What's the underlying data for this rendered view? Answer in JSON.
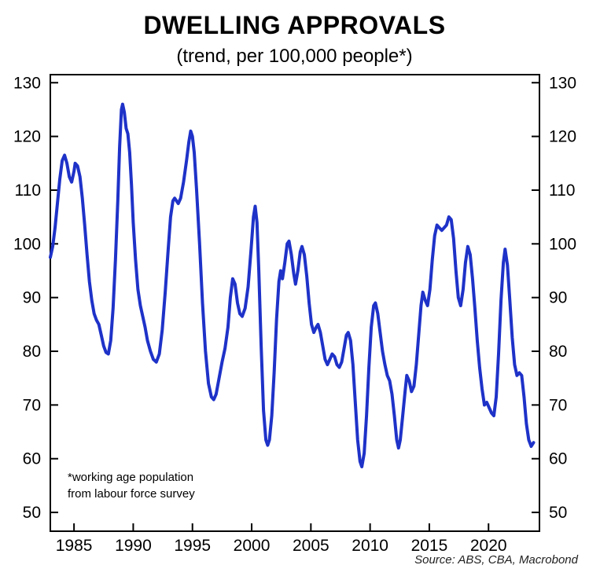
{
  "page": {
    "background": "#ffffff"
  },
  "chart_data": {
    "type": "line",
    "title": "DWELLING APPROVALS",
    "subtitle": "(trend, per 100,000 people*)",
    "xlabel": "",
    "ylabel": "",
    "x_ticks": [
      1985,
      1990,
      1995,
      2000,
      2005,
      2010,
      2015,
      2020
    ],
    "y_ticks": [
      50,
      60,
      70,
      80,
      90,
      100,
      110,
      120,
      130
    ],
    "ylim": [
      50,
      130
    ],
    "xlim": [
      1983,
      2024.3
    ],
    "ylim_draw": [
      46.5,
      131.5
    ],
    "grid": false,
    "legend": "none",
    "axis_color": "#000000",
    "line_width": 4,
    "footnote_lines": [
      "*working age population",
      "from labour force survey"
    ],
    "source": "Source: ABS, CBA, Macrobond",
    "series": [
      {
        "name": "Dwelling approvals (trend, per 100,000 people)",
        "color": "#1e32c8",
        "points": [
          [
            1983.0,
            97.5
          ],
          [
            1983.2,
            99.5
          ],
          [
            1983.4,
            103
          ],
          [
            1983.6,
            107.5
          ],
          [
            1983.8,
            112
          ],
          [
            1984.0,
            115.5
          ],
          [
            1984.2,
            116.5
          ],
          [
            1984.4,
            115
          ],
          [
            1984.6,
            112.5
          ],
          [
            1984.8,
            111.5
          ],
          [
            1985.0,
            113.5
          ],
          [
            1985.1,
            115
          ],
          [
            1985.3,
            114.5
          ],
          [
            1985.5,
            112.5
          ],
          [
            1985.7,
            108.5
          ],
          [
            1985.9,
            103.5
          ],
          [
            1986.1,
            98
          ],
          [
            1986.3,
            93
          ],
          [
            1986.5,
            89.5
          ],
          [
            1986.7,
            87
          ],
          [
            1986.9,
            85.8
          ],
          [
            1987.1,
            85
          ],
          [
            1987.3,
            83
          ],
          [
            1987.5,
            81
          ],
          [
            1987.7,
            79.8
          ],
          [
            1987.9,
            79.5
          ],
          [
            1988.1,
            82
          ],
          [
            1988.3,
            88
          ],
          [
            1988.5,
            97
          ],
          [
            1988.7,
            108
          ],
          [
            1988.85,
            118
          ],
          [
            1989.0,
            125
          ],
          [
            1989.1,
            126
          ],
          [
            1989.25,
            124.5
          ],
          [
            1989.4,
            121.5
          ],
          [
            1989.55,
            120.5
          ],
          [
            1989.7,
            117
          ],
          [
            1989.85,
            111
          ],
          [
            1990.0,
            104
          ],
          [
            1990.2,
            97
          ],
          [
            1990.4,
            91.5
          ],
          [
            1990.6,
            88.5
          ],
          [
            1990.8,
            86.5
          ],
          [
            1991.0,
            84.5
          ],
          [
            1991.2,
            82
          ],
          [
            1991.45,
            80
          ],
          [
            1991.7,
            78.5
          ],
          [
            1991.95,
            78
          ],
          [
            1992.2,
            79.5
          ],
          [
            1992.45,
            84
          ],
          [
            1992.7,
            91
          ],
          [
            1992.95,
            99
          ],
          [
            1993.15,
            105
          ],
          [
            1993.35,
            108
          ],
          [
            1993.5,
            108.5
          ],
          [
            1993.65,
            108
          ],
          [
            1993.8,
            107.5
          ],
          [
            1994.0,
            108.5
          ],
          [
            1994.25,
            111.5
          ],
          [
            1994.5,
            115.5
          ],
          [
            1994.7,
            119
          ],
          [
            1994.85,
            121
          ],
          [
            1995.0,
            120
          ],
          [
            1995.15,
            117
          ],
          [
            1995.35,
            110
          ],
          [
            1995.6,
            100
          ],
          [
            1995.85,
            89
          ],
          [
            1996.1,
            80
          ],
          [
            1996.35,
            74
          ],
          [
            1996.6,
            71.5
          ],
          [
            1996.8,
            71
          ],
          [
            1997.0,
            72
          ],
          [
            1997.25,
            75
          ],
          [
            1997.5,
            78
          ],
          [
            1997.75,
            80.5
          ],
          [
            1998.0,
            84.5
          ],
          [
            1998.2,
            90
          ],
          [
            1998.4,
            93.5
          ],
          [
            1998.6,
            92.5
          ],
          [
            1998.8,
            89
          ],
          [
            1999.0,
            87
          ],
          [
            1999.2,
            86.5
          ],
          [
            1999.45,
            88
          ],
          [
            1999.7,
            92
          ],
          [
            1999.95,
            99
          ],
          [
            2000.15,
            105
          ],
          [
            2000.3,
            107
          ],
          [
            2000.45,
            104
          ],
          [
            2000.6,
            95
          ],
          [
            2000.8,
            81
          ],
          [
            2001.0,
            69
          ],
          [
            2001.2,
            63.5
          ],
          [
            2001.35,
            62.5
          ],
          [
            2001.5,
            63.5
          ],
          [
            2001.7,
            68
          ],
          [
            2001.9,
            76
          ],
          [
            2002.1,
            86
          ],
          [
            2002.3,
            93
          ],
          [
            2002.45,
            95
          ],
          [
            2002.6,
            93.5
          ],
          [
            2002.8,
            96.5
          ],
          [
            2003.0,
            100
          ],
          [
            2003.15,
            100.5
          ],
          [
            2003.35,
            98
          ],
          [
            2003.55,
            94.5
          ],
          [
            2003.7,
            92.5
          ],
          [
            2003.9,
            95
          ],
          [
            2004.1,
            98.5
          ],
          [
            2004.25,
            99.5
          ],
          [
            2004.45,
            98
          ],
          [
            2004.65,
            94
          ],
          [
            2004.85,
            89
          ],
          [
            2005.05,
            85
          ],
          [
            2005.25,
            83.5
          ],
          [
            2005.45,
            84.5
          ],
          [
            2005.6,
            85
          ],
          [
            2005.8,
            83.5
          ],
          [
            2006.0,
            81
          ],
          [
            2006.2,
            78.5
          ],
          [
            2006.4,
            77.5
          ],
          [
            2006.6,
            78.5
          ],
          [
            2006.8,
            79.5
          ],
          [
            2007.0,
            79
          ],
          [
            2007.2,
            77.5
          ],
          [
            2007.4,
            77
          ],
          [
            2007.6,
            78
          ],
          [
            2007.8,
            80.5
          ],
          [
            2008.0,
            83
          ],
          [
            2008.15,
            83.5
          ],
          [
            2008.35,
            82
          ],
          [
            2008.55,
            77.5
          ],
          [
            2008.75,
            70.5
          ],
          [
            2008.95,
            63.5
          ],
          [
            2009.15,
            59.5
          ],
          [
            2009.3,
            58.5
          ],
          [
            2009.5,
            61
          ],
          [
            2009.7,
            68
          ],
          [
            2009.9,
            77
          ],
          [
            2010.1,
            84.5
          ],
          [
            2010.3,
            88.5
          ],
          [
            2010.45,
            89
          ],
          [
            2010.65,
            87
          ],
          [
            2010.85,
            83.5
          ],
          [
            2011.05,
            80
          ],
          [
            2011.25,
            77.5
          ],
          [
            2011.45,
            75.5
          ],
          [
            2011.65,
            74.5
          ],
          [
            2011.85,
            72
          ],
          [
            2012.05,
            68
          ],
          [
            2012.25,
            63.5
          ],
          [
            2012.4,
            62
          ],
          [
            2012.55,
            63.5
          ],
          [
            2012.75,
            68
          ],
          [
            2012.95,
            72.5
          ],
          [
            2013.1,
            75.5
          ],
          [
            2013.3,
            74.5
          ],
          [
            2013.5,
            72.5
          ],
          [
            2013.7,
            73.5
          ],
          [
            2013.9,
            77.5
          ],
          [
            2014.1,
            83
          ],
          [
            2014.3,
            88.5
          ],
          [
            2014.45,
            91
          ],
          [
            2014.65,
            89.5
          ],
          [
            2014.85,
            88.5
          ],
          [
            2015.05,
            91.5
          ],
          [
            2015.25,
            97
          ],
          [
            2015.45,
            101.5
          ],
          [
            2015.65,
            103.5
          ],
          [
            2015.85,
            103
          ],
          [
            2016.05,
            102.5
          ],
          [
            2016.25,
            103
          ],
          [
            2016.45,
            103.5
          ],
          [
            2016.65,
            105
          ],
          [
            2016.85,
            104.5
          ],
          [
            2017.05,
            101
          ],
          [
            2017.25,
            95
          ],
          [
            2017.45,
            90
          ],
          [
            2017.65,
            88.5
          ],
          [
            2017.85,
            91.5
          ],
          [
            2018.05,
            96.5
          ],
          [
            2018.25,
            99.5
          ],
          [
            2018.45,
            98
          ],
          [
            2018.65,
            93.5
          ],
          [
            2018.85,
            88
          ],
          [
            2019.05,
            82
          ],
          [
            2019.25,
            77
          ],
          [
            2019.45,
            73
          ],
          [
            2019.65,
            70
          ],
          [
            2019.85,
            70.5
          ],
          [
            2020.05,
            69.5
          ],
          [
            2020.25,
            68.5
          ],
          [
            2020.45,
            68
          ],
          [
            2020.65,
            71.5
          ],
          [
            2020.85,
            79.5
          ],
          [
            2021.05,
            89.5
          ],
          [
            2021.25,
            96.5
          ],
          [
            2021.4,
            99
          ],
          [
            2021.6,
            96
          ],
          [
            2021.8,
            89.5
          ],
          [
            2022.0,
            82.5
          ],
          [
            2022.2,
            77.5
          ],
          [
            2022.4,
            75.5
          ],
          [
            2022.6,
            76
          ],
          [
            2022.8,
            75.5
          ],
          [
            2023.0,
            71.5
          ],
          [
            2023.2,
            66.5
          ],
          [
            2023.4,
            63.5
          ],
          [
            2023.6,
            62.3
          ],
          [
            2023.8,
            63
          ]
        ]
      }
    ]
  }
}
